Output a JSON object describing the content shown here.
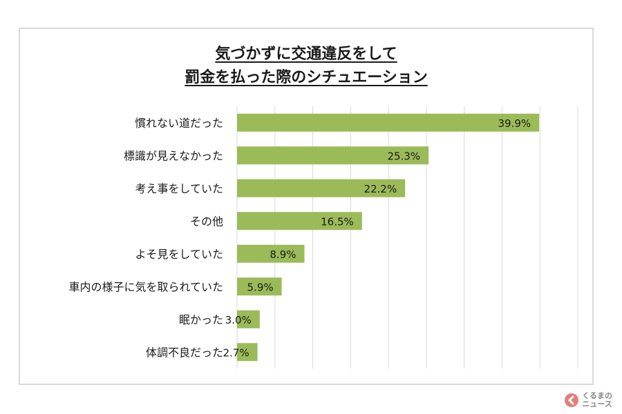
{
  "chart_data": {
    "type": "bar",
    "orientation": "horizontal",
    "title_lines": [
      "気づかずに交通違反をして",
      "罰金を払った際のシチュエーション"
    ],
    "categories": [
      "慣れない道だった",
      "標識が見えなかった",
      "考え事をしていた",
      "その他",
      "よそ見をしていた",
      "車内の様子に気を取られていた",
      "眠かった",
      "体調不良だった"
    ],
    "values": [
      39.9,
      25.3,
      22.2,
      16.5,
      8.9,
      5.9,
      3.0,
      2.7
    ],
    "value_labels": [
      "39.9%",
      "25.3%",
      "22.2%",
      "16.5%",
      "8.9%",
      "5.9%",
      "3.0%",
      "2.7%"
    ],
    "xlim": [
      0,
      45
    ],
    "grid": true,
    "legend": "none",
    "colors": {
      "bar": "#9bbb59",
      "grid": "#d9d9d9",
      "text": "#1a1a1a"
    }
  },
  "watermark": {
    "text_top": "くるまの",
    "text_bottom": "ニュース"
  }
}
